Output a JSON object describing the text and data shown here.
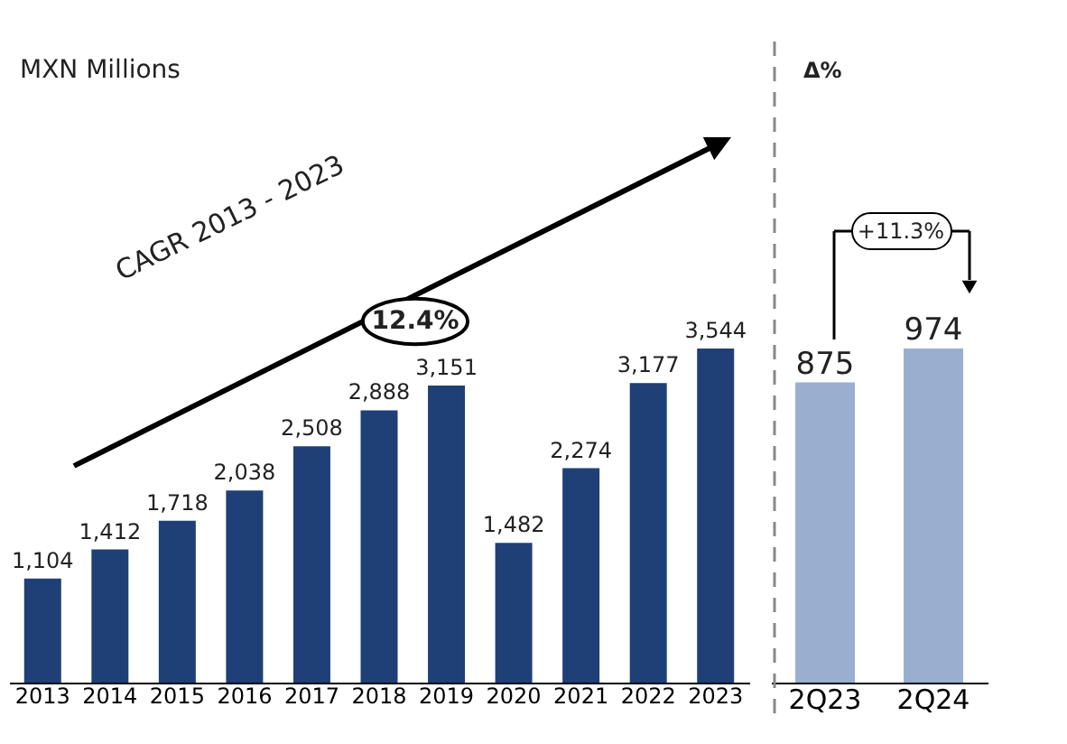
{
  "chart_data": [
    {
      "type": "bar",
      "categories": [
        "2013",
        "2014",
        "2015",
        "2016",
        "2017",
        "2018",
        "2019",
        "2020",
        "2021",
        "2022",
        "2023"
      ],
      "values": [
        1104,
        1412,
        1718,
        2038,
        2508,
        2888,
        3151,
        1482,
        2274,
        3177,
        3544
      ],
      "value_labels": [
        "1,104",
        "1,412",
        "1,718",
        "2,038",
        "2,508",
        "2,888",
        "3,151",
        "1,482",
        "2,274",
        "3,177",
        "3,544"
      ],
      "color": "#1f3f77",
      "tick_labels": "x",
      "grid": false,
      "annotations": [
        "MXN Millions",
        "CAGR 2013 - 2023",
        "12.4%"
      ]
    },
    {
      "type": "bar",
      "categories": [
        "2Q23",
        "2Q24"
      ],
      "values": [
        875,
        974
      ],
      "value_labels": [
        "875",
        "974"
      ],
      "color": "#9aafd0",
      "tick_labels": "x",
      "grid": false,
      "annotations": [
        "Δ%",
        "+11.3%"
      ]
    }
  ]
}
